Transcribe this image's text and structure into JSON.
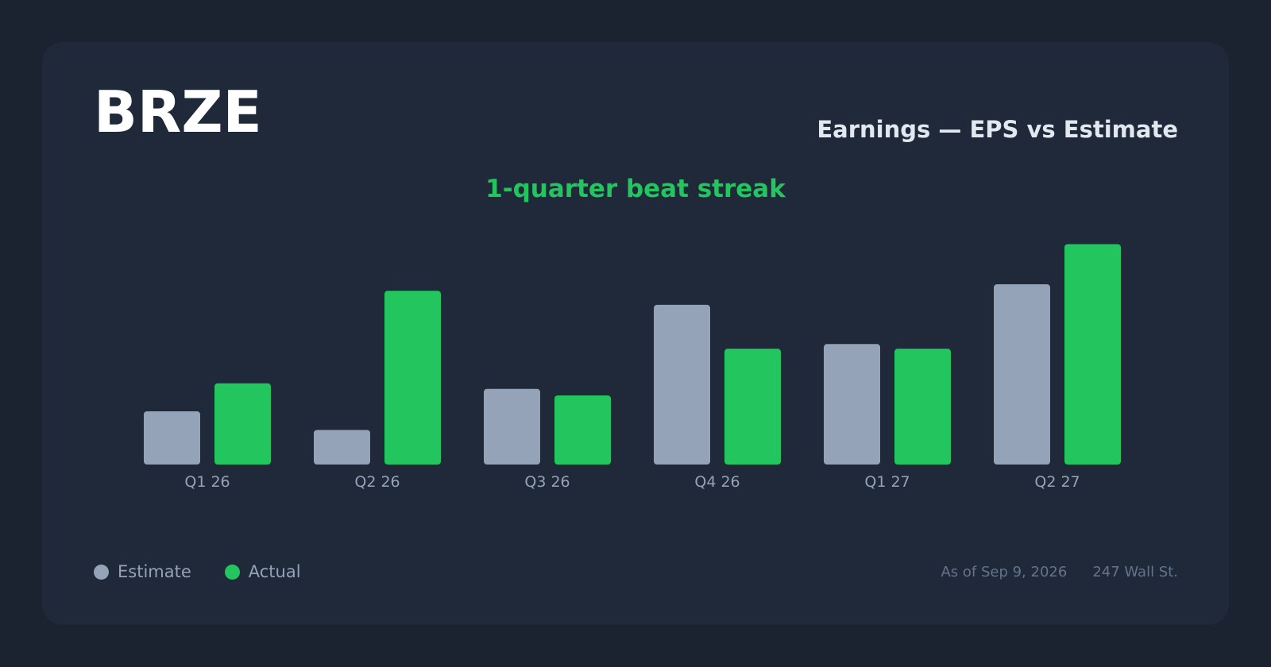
{
  "header": {
    "ticker": "BRZE",
    "title": "Earnings — EPS vs Estimate",
    "streak": "1-quarter beat streak"
  },
  "legend": {
    "estimate_label": "Estimate",
    "actual_label": "Actual"
  },
  "footer": {
    "as_of": "As of Sep 9, 2026",
    "source": "247 Wall St."
  },
  "colors": {
    "estimate": "#94a3b8",
    "actual": "#22c55e"
  },
  "chart_data": {
    "type": "bar",
    "title": "Earnings — EPS vs Estimate",
    "categories": [
      "Q1 26",
      "Q2 26",
      "Q3 26",
      "Q4 26",
      "Q1 27",
      "Q2 27"
    ],
    "series": [
      {
        "name": "Estimate",
        "values": [
          0.057,
          0.037,
          0.081,
          0.171,
          0.129,
          0.193
        ]
      },
      {
        "name": "Actual",
        "values": [
          0.087,
          0.186,
          0.074,
          0.124,
          0.124,
          0.236
        ]
      }
    ],
    "ylim": [
      0,
      0.25
    ],
    "grid": false,
    "legend": "bottom-left"
  }
}
